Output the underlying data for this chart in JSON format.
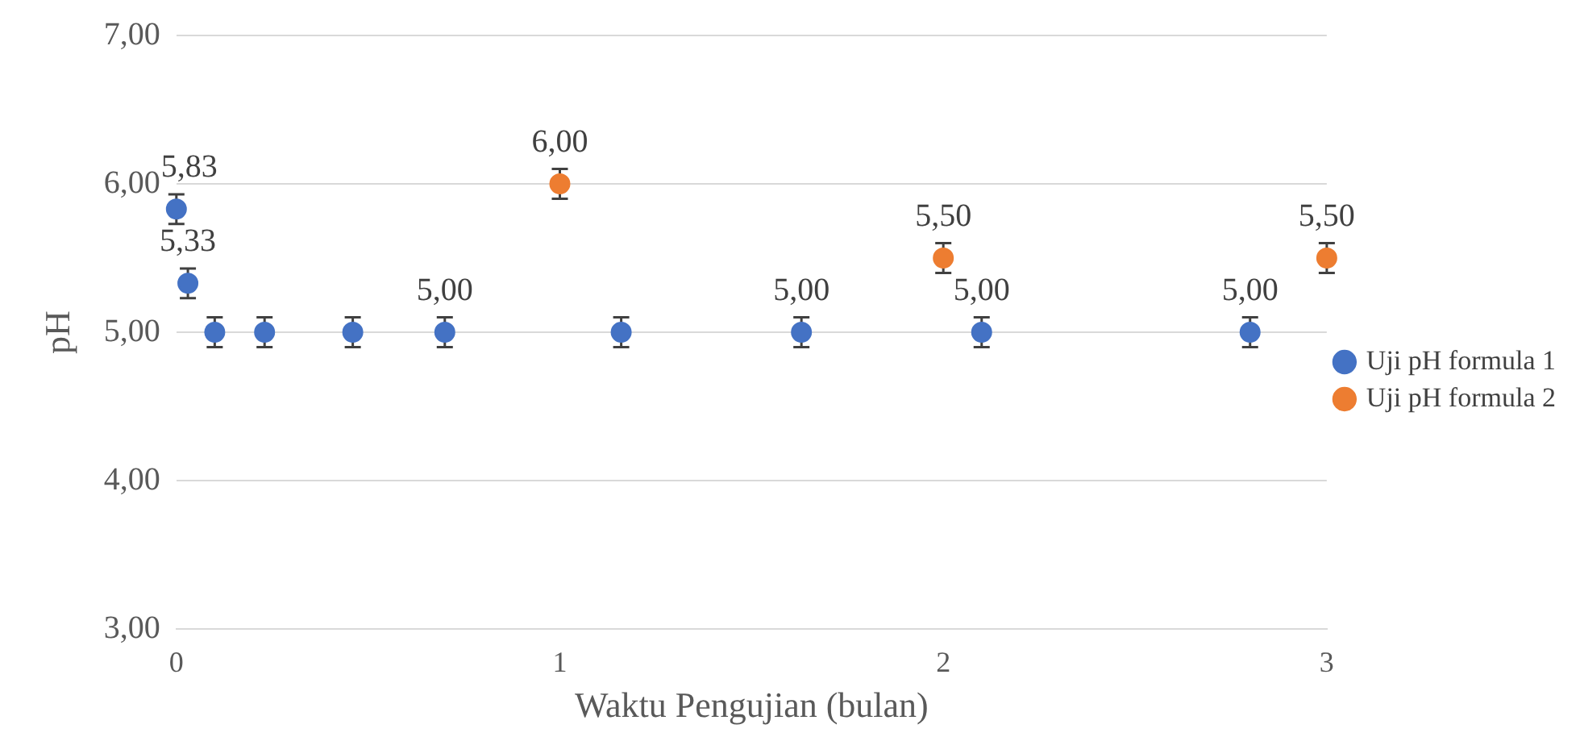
{
  "chart_data": {
    "type": "scatter",
    "xlabel": "Waktu Pengujian (bulan)",
    "ylabel": "pH",
    "xlim": [
      0,
      3
    ],
    "xticks": [
      0,
      1,
      2,
      3
    ],
    "ylim": [
      3,
      7
    ],
    "yticks": [
      {
        "value": 3,
        "label": "3,00"
      },
      {
        "value": 4,
        "label": "4,00"
      },
      {
        "value": 5,
        "label": "5,00"
      },
      {
        "value": 6,
        "label": "6,00"
      },
      {
        "value": 7,
        "label": "7,00"
      }
    ],
    "grid": "y",
    "legend": "right",
    "marker": "circle",
    "series": [
      {
        "name": "Uji pH formula 1",
        "color": "#4472c4",
        "x": [
          0,
          0.03,
          0.1,
          0.23,
          0.46,
          0.7,
          1.16,
          1.63,
          2.1,
          2.8
        ],
        "values": [
          5.83,
          5.33,
          5,
          5,
          5,
          5,
          5,
          5,
          5,
          5
        ],
        "errors": [
          0.1,
          0.1,
          0.1,
          0.1,
          0.1,
          0.1,
          0.1,
          0.1,
          0.1,
          0.1
        ],
        "value_labels": [
          "5,83",
          "5,33",
          null,
          null,
          null,
          "5,00",
          null,
          "5,00",
          "5,00",
          "5,00"
        ]
      },
      {
        "name": "Uji pH formula 2",
        "color": "#ed7d31",
        "x": [
          1,
          2,
          3
        ],
        "values": [
          6,
          5.5,
          5.5
        ],
        "errors": [
          0.1,
          0.1,
          0.1
        ],
        "value_labels": [
          "6,00",
          "5,50",
          "5,50"
        ]
      }
    ]
  }
}
